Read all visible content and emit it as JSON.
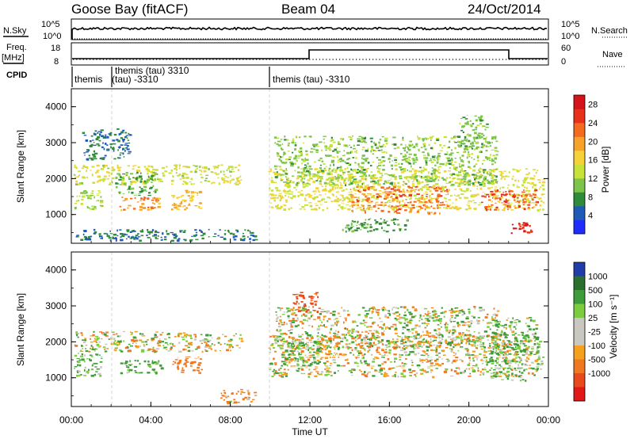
{
  "header": {
    "station": "Goose Bay (fitACF)",
    "beam": "Beam 04",
    "date": "24/Oct/2014"
  },
  "panels": {
    "nsky_label": "N.Sky",
    "nsky_ticks": [
      "10^5",
      "10^0"
    ],
    "nsearch_label": "N.Search",
    "freq_label": "Freq.",
    "freq_unit": "[MHz]",
    "freq_ticks": [
      "18",
      "8"
    ],
    "nave_label": "Nave",
    "nave_ticks": [
      "60",
      "0"
    ],
    "cpid_label": "CPID",
    "cpid_entries": [
      {
        "text": "themis",
        "start_hr": 0.0
      },
      {
        "text": "themis (tau) 3310",
        "start_hr": 1.95,
        "line2": "(tau) -3310"
      },
      {
        "text": "themis (tau) -3310",
        "start_hr": 9.9
      }
    ]
  },
  "axes": {
    "ylabel": "Slant Range [km]",
    "xlabel": "Time UT",
    "x_ticks": [
      "00:00",
      "04:00",
      "08:00",
      "12:00",
      "16:00",
      "20:00",
      "00:00"
    ],
    "y_ticks": [
      "1000",
      "2000",
      "3000",
      "4000"
    ]
  },
  "colorbars": {
    "power": {
      "label": "Power [dB]",
      "ticks": [
        "4",
        "8",
        "12",
        "16",
        "20",
        "24",
        "28"
      ],
      "colors": [
        "#1f2cff",
        "#1f5ab8",
        "#2e8b3a",
        "#7cc44a",
        "#c8e23a",
        "#f6d23a",
        "#f7a22b",
        "#f46a1f",
        "#e8301a",
        "#d4141a"
      ]
    },
    "velocity": {
      "label": "Velocity [m s⁻¹]",
      "ticks": [
        "1000",
        "500",
        "100",
        "25",
        "-25",
        "-100",
        "-500",
        "-1000"
      ],
      "colors": [
        "#1f3ca8",
        "#2b6e2e",
        "#3f9c3a",
        "#7bcc3e",
        "#c8c8c0",
        "#c8c8c0",
        "#f6a020",
        "#f07820",
        "#e84a1c",
        "#e01818"
      ]
    }
  },
  "chart_data": [
    {
      "type": "heatmap",
      "title": "",
      "xlabel": "Time UT",
      "ylabel": "Slant Range [km]",
      "xlim": [
        0,
        24
      ],
      "ylim": [
        200,
        4500
      ],
      "colorbar": "Power [dB]",
      "clim": [
        0,
        30
      ],
      "regions": [
        {
          "t0": 0.1,
          "t1": 8.6,
          "r0": 1800,
          "r1": 2400,
          "v": 14
        },
        {
          "t0": 0.1,
          "t1": 1.6,
          "r0": 1100,
          "r1": 1700,
          "v": 12
        },
        {
          "t0": 2.2,
          "t1": 4.3,
          "r0": 1500,
          "r1": 2200,
          "v": 9
        },
        {
          "t0": 2.4,
          "t1": 4.5,
          "r0": 1100,
          "r1": 1500,
          "v": 20
        },
        {
          "t0": 5.0,
          "t1": 6.6,
          "r0": 1100,
          "r1": 1700,
          "v": 18
        },
        {
          "t0": 0.5,
          "t1": 3.0,
          "r0": 2500,
          "r1": 3400,
          "v": 6
        },
        {
          "t0": 0.2,
          "t1": 9.4,
          "r0": 250,
          "r1": 600,
          "v": 6
        },
        {
          "t0": 9.9,
          "t1": 23.8,
          "r0": 1100,
          "r1": 2300,
          "v": 15
        },
        {
          "t0": 14.0,
          "t1": 19.0,
          "r0": 1000,
          "r1": 1800,
          "v": 22
        },
        {
          "t0": 20.5,
          "t1": 23.5,
          "r0": 1100,
          "r1": 1700,
          "v": 24
        },
        {
          "t0": 10.2,
          "t1": 21.5,
          "r0": 1800,
          "r1": 3200,
          "v": 11
        },
        {
          "t0": 13.5,
          "t1": 17.0,
          "r0": 500,
          "r1": 900,
          "v": 9
        },
        {
          "t0": 22.0,
          "t1": 23.2,
          "r0": 450,
          "r1": 800,
          "v": 26
        },
        {
          "t0": 19.5,
          "t1": 21.0,
          "r0": 2800,
          "r1": 3800,
          "v": 10
        }
      ]
    },
    {
      "type": "heatmap",
      "title": "",
      "xlabel": "Time UT",
      "ylabel": "Slant Range [km]",
      "xlim": [
        0,
        24
      ],
      "ylim": [
        200,
        4500
      ],
      "colorbar": "Velocity [m s⁻¹]",
      "clim": [
        -1000,
        1000
      ],
      "regions": [
        {
          "t0": 0.1,
          "t1": 8.6,
          "r0": 1700,
          "r1": 2300,
          "v": 0
        },
        {
          "t0": 0.1,
          "t1": 1.6,
          "r0": 1000,
          "r1": 1700,
          "v": 150
        },
        {
          "t0": 2.4,
          "t1": 4.6,
          "r0": 1100,
          "r1": 1500,
          "v": 200
        },
        {
          "t0": 5.0,
          "t1": 6.6,
          "r0": 1100,
          "r1": 1600,
          "v": -300
        },
        {
          "t0": 7.5,
          "t1": 9.4,
          "r0": 250,
          "r1": 700,
          "v": -150
        },
        {
          "t0": 9.9,
          "t1": 23.8,
          "r0": 1000,
          "r1": 2200,
          "v": 0
        },
        {
          "t0": 10.2,
          "t1": 21.5,
          "r0": 1800,
          "r1": 3000,
          "v": 0
        },
        {
          "t0": 10.5,
          "t1": 12.5,
          "r0": 1300,
          "r1": 2000,
          "v": 120
        },
        {
          "t0": 21.0,
          "t1": 23.5,
          "r0": 900,
          "r1": 2700,
          "v": 120
        },
        {
          "t0": 11.0,
          "t1": 12.5,
          "r0": 2700,
          "r1": 3400,
          "v": -600
        }
      ]
    }
  ]
}
